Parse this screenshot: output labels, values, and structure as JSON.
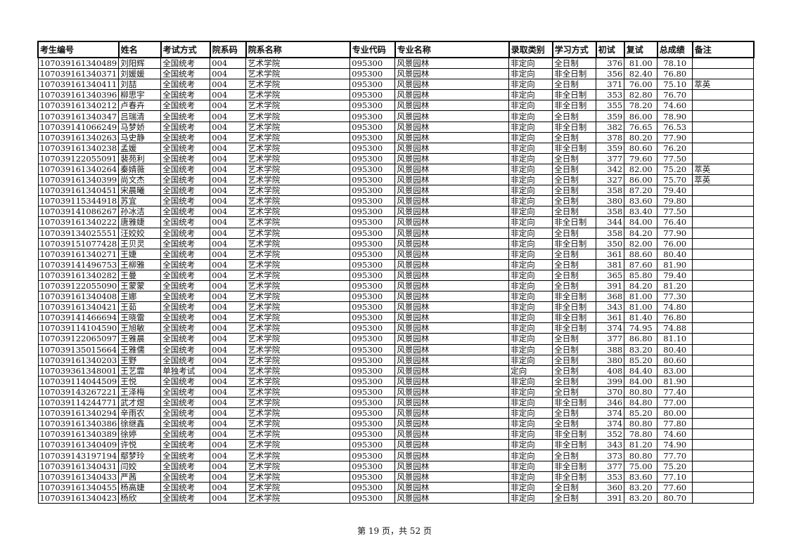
{
  "headers": [
    "考生编号",
    "姓名",
    "考试方式",
    "院系码",
    "院系名称",
    "专业代码",
    "专业名称",
    "录取类别",
    "学习方式",
    "初试",
    "复试",
    "总成绩",
    "备注"
  ],
  "rows": [
    [
      "107039161340489",
      "刘阳辉",
      "全国统考",
      "004",
      "艺术学院",
      "095300",
      "风景园林",
      "非定向",
      "全日制",
      "376",
      "81.00",
      "78.10",
      ""
    ],
    [
      "107039161340371",
      "刘媛媛",
      "全国统考",
      "004",
      "艺术学院",
      "095300",
      "风景园林",
      "非定向",
      "非全日制",
      "356",
      "82.40",
      "76.80",
      ""
    ],
    [
      "107039161340411",
      "刘喆",
      "全国统考",
      "004",
      "艺术学院",
      "095300",
      "风景园林",
      "非定向",
      "全日制",
      "371",
      "76.00",
      "75.10",
      "萃英"
    ],
    [
      "107039161340396",
      "柳思宇",
      "全国统考",
      "004",
      "艺术学院",
      "095300",
      "风景园林",
      "非定向",
      "非全日制",
      "353",
      "82.80",
      "76.70",
      ""
    ],
    [
      "107039161340212",
      "卢春卉",
      "全国统考",
      "004",
      "艺术学院",
      "095300",
      "风景园林",
      "非定向",
      "非全日制",
      "355",
      "78.20",
      "74.60",
      ""
    ],
    [
      "107039161340347",
      "吕瑞清",
      "全国统考",
      "004",
      "艺术学院",
      "095300",
      "风景园林",
      "非定向",
      "全日制",
      "359",
      "86.00",
      "78.90",
      ""
    ],
    [
      "107039141066249",
      "马梦娇",
      "全国统考",
      "004",
      "艺术学院",
      "095300",
      "风景园林",
      "非定向",
      "非全日制",
      "382",
      "76.65",
      "76.53",
      ""
    ],
    [
      "107039161340263",
      "马史静",
      "全国统考",
      "004",
      "艺术学院",
      "095300",
      "风景园林",
      "非定向",
      "全日制",
      "378",
      "80.20",
      "77.90",
      ""
    ],
    [
      "107039161340238",
      "孟媛",
      "全国统考",
      "004",
      "艺术学院",
      "095300",
      "风景园林",
      "非定向",
      "非全日制",
      "359",
      "80.60",
      "76.20",
      ""
    ],
    [
      "107039122055091",
      "裴苑利",
      "全国统考",
      "004",
      "艺术学院",
      "095300",
      "风景园林",
      "非定向",
      "全日制",
      "377",
      "79.60",
      "77.50",
      ""
    ],
    [
      "107039161340264",
      "秦婧薇",
      "全国统考",
      "004",
      "艺术学院",
      "095300",
      "风景园林",
      "非定向",
      "全日制",
      "342",
      "82.00",
      "75.20",
      "萃英"
    ],
    [
      "107039161340399",
      "尚文杰",
      "全国统考",
      "004",
      "艺术学院",
      "095300",
      "风景园林",
      "非定向",
      "全日制",
      "327",
      "86.00",
      "75.70",
      "萃英"
    ],
    [
      "107039161340451",
      "宋晨曦",
      "全国统考",
      "004",
      "艺术学院",
      "095300",
      "风景园林",
      "非定向",
      "全日制",
      "358",
      "87.20",
      "79.40",
      ""
    ],
    [
      "107039115344918",
      "苏宜",
      "全国统考",
      "004",
      "艺术学院",
      "095300",
      "风景园林",
      "非定向",
      "全日制",
      "380",
      "83.60",
      "79.80",
      ""
    ],
    [
      "107039141086267",
      "孙冰洁",
      "全国统考",
      "004",
      "艺术学院",
      "095300",
      "风景园林",
      "非定向",
      "全日制",
      "358",
      "83.40",
      "77.50",
      ""
    ],
    [
      "107039161340222",
      "唐雅婕",
      "全国统考",
      "004",
      "艺术学院",
      "095300",
      "风景园林",
      "非定向",
      "非全日制",
      "344",
      "84.00",
      "76.40",
      ""
    ],
    [
      "107039134025551",
      "汪姣姣",
      "全国统考",
      "004",
      "艺术学院",
      "095300",
      "风景园林",
      "非定向",
      "全日制",
      "358",
      "84.20",
      "77.90",
      ""
    ],
    [
      "107039151077428",
      "王贝灵",
      "全国统考",
      "004",
      "艺术学院",
      "095300",
      "风景园林",
      "非定向",
      "非全日制",
      "350",
      "82.00",
      "76.00",
      ""
    ],
    [
      "107039161340271",
      "王婕",
      "全国统考",
      "004",
      "艺术学院",
      "095300",
      "风景园林",
      "非定向",
      "全日制",
      "361",
      "88.60",
      "80.40",
      ""
    ],
    [
      "107039141496753",
      "王柳雅",
      "全国统考",
      "004",
      "艺术学院",
      "095300",
      "风景园林",
      "非定向",
      "全日制",
      "381",
      "87.60",
      "81.90",
      ""
    ],
    [
      "107039161340282",
      "王曼",
      "全国统考",
      "004",
      "艺术学院",
      "095300",
      "风景园林",
      "非定向",
      "全日制",
      "365",
      "85.80",
      "79.40",
      ""
    ],
    [
      "107039122055090",
      "王蒙蒙",
      "全国统考",
      "004",
      "艺术学院",
      "095300",
      "风景园林",
      "非定向",
      "全日制",
      "391",
      "84.20",
      "81.20",
      ""
    ],
    [
      "107039161340408",
      "王娜",
      "全国统考",
      "004",
      "艺术学院",
      "095300",
      "风景园林",
      "非定向",
      "非全日制",
      "368",
      "81.00",
      "77.30",
      ""
    ],
    [
      "107039161340421",
      "王茹",
      "全国统考",
      "004",
      "艺术学院",
      "095300",
      "风景园林",
      "非定向",
      "非全日制",
      "343",
      "81.00",
      "74.80",
      ""
    ],
    [
      "107039141466694",
      "王晓雷",
      "全国统考",
      "004",
      "艺术学院",
      "095300",
      "风景园林",
      "非定向",
      "非全日制",
      "361",
      "81.40",
      "76.80",
      ""
    ],
    [
      "107039114104590",
      "王旭敏",
      "全国统考",
      "004",
      "艺术学院",
      "095300",
      "风景园林",
      "非定向",
      "非全日制",
      "374",
      "74.95",
      "74.88",
      ""
    ],
    [
      "107039122065097",
      "王雅晨",
      "全国统考",
      "004",
      "艺术学院",
      "095300",
      "风景园林",
      "非定向",
      "全日制",
      "377",
      "86.80",
      "81.10",
      ""
    ],
    [
      "107039135015664",
      "王雅儒",
      "全国统考",
      "004",
      "艺术学院",
      "095300",
      "风景园林",
      "非定向",
      "全日制",
      "388",
      "83.20",
      "80.40",
      ""
    ],
    [
      "107039161340203",
      "王野",
      "全国统考",
      "004",
      "艺术学院",
      "095300",
      "风景园林",
      "非定向",
      "全日制",
      "380",
      "85.20",
      "80.60",
      ""
    ],
    [
      "107039361348001",
      "王艺霏",
      "单独考试",
      "004",
      "艺术学院",
      "095300",
      "风景园林",
      "定向",
      "全日制",
      "408",
      "84.40",
      "83.00",
      ""
    ],
    [
      "107039114044509",
      "王悦",
      "全国统考",
      "004",
      "艺术学院",
      "095300",
      "风景园林",
      "非定向",
      "全日制",
      "399",
      "84.00",
      "81.90",
      ""
    ],
    [
      "107039143267221",
      "王泽梅",
      "全国统考",
      "004",
      "艺术学院",
      "095300",
      "风景园林",
      "非定向",
      "全日制",
      "370",
      "80.80",
      "77.40",
      ""
    ],
    [
      "107039114244771",
      "武才煜",
      "全国统考",
      "004",
      "艺术学院",
      "095300",
      "风景园林",
      "非定向",
      "非全日制",
      "346",
      "84.80",
      "77.00",
      ""
    ],
    [
      "107039161340294",
      "辛雨农",
      "全国统考",
      "004",
      "艺术学院",
      "095300",
      "风景园林",
      "非定向",
      "全日制",
      "374",
      "85.20",
      "80.00",
      ""
    ],
    [
      "107039161340386",
      "徐继鑫",
      "全国统考",
      "004",
      "艺术学院",
      "095300",
      "风景园林",
      "非定向",
      "全日制",
      "374",
      "80.80",
      "77.80",
      ""
    ],
    [
      "107039161340389",
      "徐婷",
      "全国统考",
      "004",
      "艺术学院",
      "095300",
      "风景园林",
      "非定向",
      "非全日制",
      "352",
      "78.80",
      "74.60",
      ""
    ],
    [
      "107039161340409",
      "许悦",
      "全国统考",
      "004",
      "艺术学院",
      "095300",
      "风景园林",
      "非定向",
      "非全日制",
      "343",
      "81.20",
      "74.90",
      ""
    ],
    [
      "107039143197194",
      "鄢梦玲",
      "全国统考",
      "004",
      "艺术学院",
      "095300",
      "风景园林",
      "非定向",
      "全日制",
      "373",
      "80.80",
      "77.70",
      ""
    ],
    [
      "107039161340431",
      "闫姣",
      "全国统考",
      "004",
      "艺术学院",
      "095300",
      "风景园林",
      "非定向",
      "非全日制",
      "377",
      "75.00",
      "75.20",
      ""
    ],
    [
      "107039161340433",
      "严茜",
      "全国统考",
      "004",
      "艺术学院",
      "095300",
      "风景园林",
      "非定向",
      "非全日制",
      "353",
      "83.60",
      "77.10",
      ""
    ],
    [
      "107039161340455",
      "杨高婕",
      "全国统考",
      "004",
      "艺术学院",
      "095300",
      "风景园林",
      "非定向",
      "全日制",
      "360",
      "83.20",
      "77.60",
      ""
    ],
    [
      "107039161340423",
      "杨欣",
      "全国统考",
      "004",
      "艺术学院",
      "095300",
      "风景园林",
      "非定向",
      "全日制",
      "391",
      "83.20",
      "80.70",
      ""
    ]
  ],
  "footer": "第 19 页，共 52 页"
}
